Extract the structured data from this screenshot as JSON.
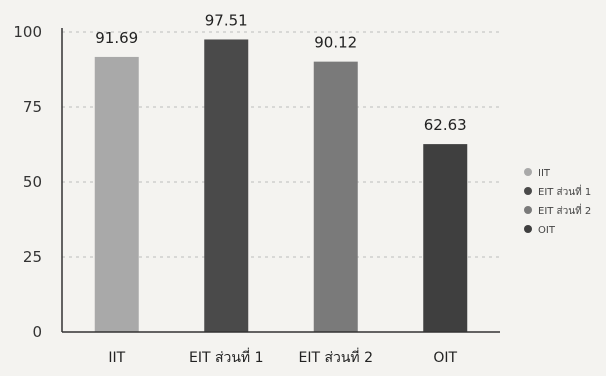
{
  "chart_data": {
    "type": "bar",
    "categories": [
      "IIT",
      "EIT ส่วนที่ 1",
      "EIT ส่วนที่ 2",
      "OIT"
    ],
    "values": [
      91.69,
      97.51,
      90.12,
      62.63
    ],
    "value_labels": [
      "91.69",
      "97.51",
      "90.12",
      "62.63"
    ],
    "colors": [
      "#a9a9a9",
      "#4a4a4a",
      "#7a7a7a",
      "#3f3f3f"
    ],
    "ylim": [
      0,
      100
    ],
    "yticks": [
      0,
      25,
      50,
      75,
      100
    ],
    "ytick_labels": [
      "0",
      "25",
      "50",
      "75",
      "100"
    ],
    "grid": true,
    "legend_position": "right",
    "legend": [
      "IIT",
      "EIT ส่วนที่ 1",
      "EIT ส่วนที่ 2",
      "OIT"
    ],
    "title": "",
    "xlabel": "",
    "ylabel": ""
  }
}
